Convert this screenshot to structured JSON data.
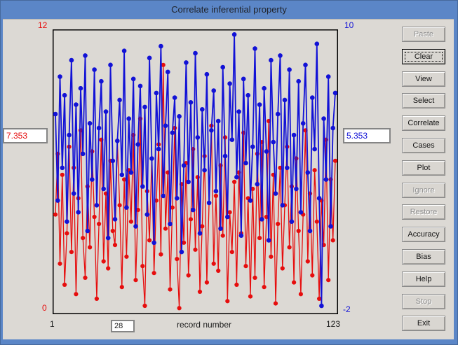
{
  "window": {
    "title": "Correlate inferential property"
  },
  "colors": {
    "titlebar_blue": "#5b86c7",
    "client_gray": "#dcd9d4",
    "series_red": "#e60d0d",
    "series_blue": "#1212d6"
  },
  "buttons": [
    {
      "label": "Paste",
      "enabled": false,
      "focused": false
    },
    {
      "label": "Clear",
      "enabled": true,
      "focused": true
    },
    {
      "label": "View",
      "enabled": true,
      "focused": false
    },
    {
      "label": "Select",
      "enabled": true,
      "focused": false
    },
    {
      "label": "Correlate",
      "enabled": true,
      "focused": false
    },
    {
      "label": "Cases",
      "enabled": true,
      "focused": false
    },
    {
      "label": "Plot",
      "enabled": true,
      "focused": false
    },
    {
      "label": "Ignore",
      "enabled": false,
      "focused": false
    },
    {
      "label": "Restore",
      "enabled": false,
      "focused": false
    },
    {
      "label": "Accuracy",
      "enabled": true,
      "focused": false
    },
    {
      "label": "Bias",
      "enabled": true,
      "focused": false
    },
    {
      "label": "Help",
      "enabled": true,
      "focused": false
    },
    {
      "label": "Stop",
      "enabled": false,
      "focused": false
    },
    {
      "label": "Exit",
      "enabled": true,
      "focused": false
    }
  ],
  "fields": {
    "left_value": "7.353",
    "right_value": "5.353",
    "record_value": "28"
  },
  "chart_data": {
    "type": "line",
    "title": "",
    "xlabel": "record number",
    "x_min_label": "1",
    "x_max_label": "123",
    "x_range": [
      1,
      123
    ],
    "grid": false,
    "legend": "none",
    "left_axis": {
      "min": 0,
      "max": 12,
      "max_label": "12",
      "min_label": "0",
      "color": "#e60d0d"
    },
    "right_axis": {
      "min": -2,
      "max": 10,
      "max_label": "10",
      "min_label": "-2",
      "color": "#1212d6"
    },
    "series": [
      {
        "name": "red-series",
        "axis": "left",
        "color": "#e60d0d",
        "line_width": 1.3,
        "marker": "circle",
        "marker_r": 3.1,
        "values": [
          4.2,
          6.8,
          2.1,
          5.9,
          1.2,
          3.4,
          7.1,
          2.6,
          6.2,
          0.8,
          4.9,
          7.8,
          3.2,
          1.5,
          5.4,
          2.8,
          6.9,
          4.1,
          0.6,
          3.8,
          7.4,
          2.2,
          5.1,
          1.9,
          6.5,
          3.5,
          2.9,
          7.353,
          4.6,
          1.1,
          5.7,
          2.4,
          6.1,
          3.9,
          7.6,
          1.4,
          4.4,
          8.3,
          2.0,
          0.3,
          5.2,
          3.1,
          6.6,
          1.7,
          4.8,
          7.2,
          2.5,
          10.6,
          3.6,
          6.0,
          1.0,
          4.5,
          7.9,
          2.3,
          0.2,
          5.5,
          3.0,
          6.4,
          1.6,
          4.0,
          7.0,
          2.7,
          5.8,
          0.9,
          3.7,
          6.7,
          1.3,
          4.7,
          8.0,
          2.1,
          5.0,
          1.8,
          6.3,
          3.3,
          7.5,
          0.5,
          4.3,
          2.6,
          5.6,
          1.2,
          6.0,
          3.4,
          7.7,
          2.0,
          4.9,
          0.7,
          5.3,
          1.5,
          6.8,
          3.2,
          7.3,
          1.1,
          4.1,
          8.2,
          2.4,
          5.9,
          0.4,
          3.8,
          6.2,
          1.9,
          4.6,
          7.1,
          2.8,
          5.4,
          1.3,
          6.6,
          3.5,
          0.8,
          4.2,
          7.8,
          2.2,
          5.1,
          1.6,
          6.1,
          3.9,
          0.6,
          4.8,
          2.9,
          7.4,
          1.4,
          5.7,
          3.1,
          6.5
        ]
      },
      {
        "name": "blue-series",
        "axis": "right",
        "color": "#1212d6",
        "line_width": 1.8,
        "marker": "circle",
        "marker_r": 3.3,
        "values": [
          6.5,
          2.8,
          8.1,
          4.2,
          7.3,
          1.9,
          5.6,
          8.8,
          3.1,
          6.9,
          2.3,
          7.6,
          4.8,
          9.0,
          1.5,
          6.1,
          3.7,
          8.4,
          2.6,
          5.9,
          7.9,
          3.3,
          6.6,
          1.2,
          8.6,
          4.5,
          2.0,
          5.353,
          7.1,
          3.9,
          9.2,
          2.5,
          6.3,
          4.0,
          8.0,
          1.7,
          5.2,
          7.7,
          3.4,
          6.8,
          2.2,
          8.9,
          4.6,
          1.0,
          7.4,
          5.0,
          9.4,
          3.0,
          6.0,
          8.3,
          1.8,
          5.7,
          7.2,
          2.9,
          6.4,
          0.6,
          4.3,
          8.7,
          3.6,
          7.0,
          2.4,
          9.1,
          5.5,
          1.4,
          6.7,
          4.1,
          8.2,
          2.7,
          5.8,
          7.5,
          3.2,
          6.2,
          1.6,
          8.5,
          4.7,
          2.1,
          7.8,
          5.4,
          9.9,
          3.8,
          6.6,
          1.3,
          8.0,
          4.4,
          7.3,
          2.8,
          5.1,
          9.3,
          3.5,
          6.9,
          2.0,
          7.6,
          4.9,
          1.1,
          8.8,
          5.3,
          3.1,
          6.5,
          9.0,
          2.6,
          7.1,
          4.2,
          8.4,
          1.9,
          5.6,
          3.3,
          7.9,
          2.3,
          6.1,
          8.6,
          4.0,
          1.5,
          7.2,
          5.0,
          9.5,
          2.9,
          -1.7,
          6.3,
          3.7,
          8.1,
          1.7,
          5.9,
          7.4
        ]
      }
    ]
  }
}
